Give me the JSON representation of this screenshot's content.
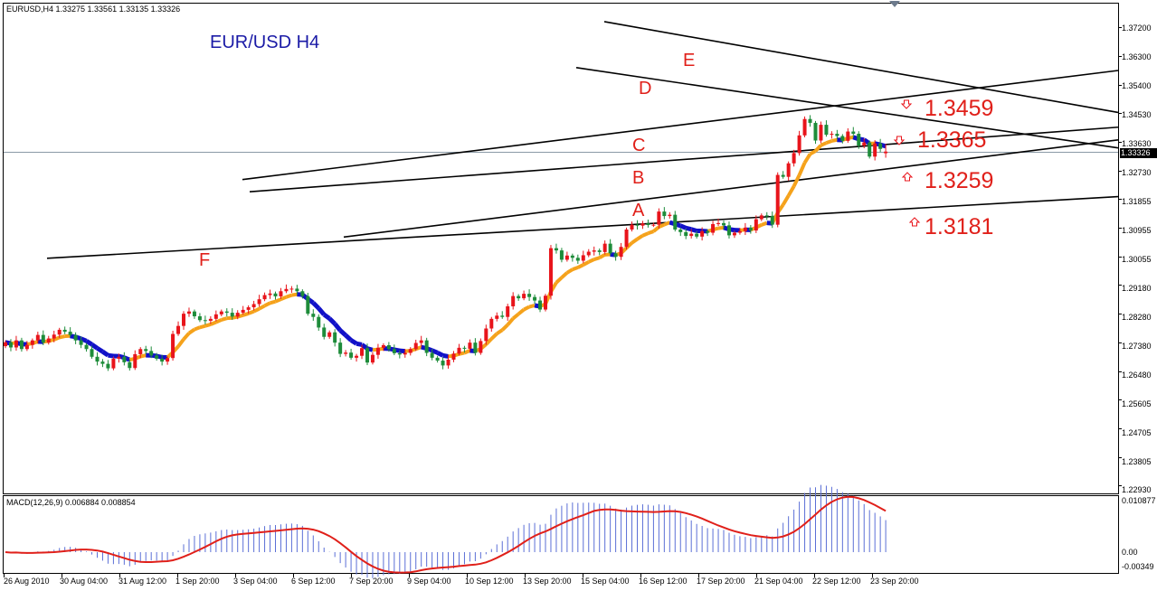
{
  "header": {
    "symbol_line": "EURUSD,H4  1.33275 1.33561 1.33135 1.33326",
    "title": "EUR/USD  H4",
    "current_price": "1.33326"
  },
  "annotations": {
    "wave_letters": [
      "A",
      "B",
      "C",
      "D",
      "E",
      "F"
    ],
    "levels": [
      "1.3459",
      "1.3365",
      "1.3259",
      "1.3181"
    ]
  },
  "macd": {
    "label": "MACD(12,26,9) 0.006884 0.008854",
    "axis": [
      "0.010877",
      "0.00",
      "-0.00349"
    ]
  },
  "colors": {
    "bull": "#e8141b",
    "bear": "#1e8c3a",
    "signal_up": "#f5a21b",
    "signal_down": "#1111c8",
    "macd_hist": "#5b6fd6",
    "macd_signal": "#e0201a"
  },
  "chart_data": [
    {
      "type": "candlestick",
      "title": "EUR/USD  H4",
      "symbol": "EURUSD,H4",
      "last_bar": {
        "open": 1.33275,
        "high": 1.33561,
        "low": 1.33135,
        "close": 1.33326
      },
      "x_tick_labels": [
        "26 Aug 2010",
        "30 Aug 04:00",
        "31 Aug 12:00",
        "1 Sep 20:00",
        "3 Sep 04:00",
        "6 Sep 12:00",
        "7 Sep 20:00",
        "9 Sep 04:00",
        "10 Sep 12:00",
        "13 Sep 20:00",
        "15 Sep 04:00",
        "16 Sep 12:00",
        "17 Sep 20:00",
        "21 Sep 04:00",
        "22 Sep 12:00",
        "23 Sep 20:00"
      ],
      "y_tick_labels": [
        "1.37200",
        "1.36300",
        "1.35400",
        "1.34530",
        "1.33630",
        "1.32730",
        "1.31855",
        "1.30955",
        "1.30055",
        "1.29180",
        "1.28280",
        "1.27380",
        "1.26480",
        "1.25605",
        "1.24705",
        "1.23805",
        "1.22930"
      ],
      "ylim": [
        1.2262,
        1.3755
      ],
      "horizontal_line": 1.33326,
      "closes": [
        1.2739,
        1.2723,
        1.2745,
        1.2718,
        1.2731,
        1.2745,
        1.2762,
        1.2738,
        1.2751,
        1.2763,
        1.2778,
        1.2772,
        1.2762,
        1.2745,
        1.2731,
        1.2718,
        1.2694,
        1.2679,
        1.2672,
        1.2658,
        1.2688,
        1.2694,
        1.2677,
        1.2659,
        1.2702,
        1.2718,
        1.2712,
        1.2698,
        1.2688,
        1.2679,
        1.269,
        1.2765,
        1.279,
        1.2828,
        1.2835,
        1.282,
        1.2808,
        1.2806,
        1.2812,
        1.2826,
        1.2835,
        1.2831,
        1.2819,
        1.2831,
        1.284,
        1.2848,
        1.2858,
        1.2873,
        1.2886,
        1.2891,
        1.2882,
        1.2898,
        1.2905,
        1.2906,
        1.2898,
        1.2883,
        1.2828,
        1.2818,
        1.2785,
        1.2756,
        1.277,
        1.2738,
        1.2703,
        1.2707,
        1.2691,
        1.2697,
        1.2721,
        1.2676,
        1.27,
        1.2722,
        1.273,
        1.2718,
        1.2705,
        1.2701,
        1.2706,
        1.2718,
        1.2737,
        1.2745,
        1.2706,
        1.2691,
        1.2682,
        1.2667,
        1.2685,
        1.2704,
        1.2722,
        1.2719,
        1.2738,
        1.2706,
        1.2743,
        1.2782,
        1.2812,
        1.2822,
        1.2818,
        1.2851,
        1.2883,
        1.2876,
        1.289,
        1.288,
        1.2869,
        1.2841,
        1.2884,
        1.3032,
        1.3025,
        1.2996,
        1.3009,
        1.3002,
        1.2993,
        1.301,
        1.3021,
        1.3025,
        1.302,
        1.3046,
        1.3016,
        1.3005,
        1.3036,
        1.309,
        1.3105,
        1.3102,
        1.3109,
        1.3104,
        1.3105,
        1.3146,
        1.3132,
        1.3136,
        1.309,
        1.3082,
        1.307,
        1.3077,
        1.3068,
        1.3085,
        1.308,
        1.3107,
        1.311,
        1.3103,
        1.3072,
        1.308,
        1.3085,
        1.3096,
        1.3087,
        1.3122,
        1.3134,
        1.3132,
        1.3105,
        1.326,
        1.3254,
        1.3296,
        1.3328,
        1.3383,
        1.3434,
        1.3422,
        1.3367,
        1.3416,
        1.3385,
        1.3388,
        1.3381,
        1.3366,
        1.3395,
        1.3388,
        1.3351,
        1.3361,
        1.3317,
        1.3358,
        1.3341,
        1.3333
      ],
      "signal_line_direction": [
        "down",
        "up",
        "down",
        "up",
        "down",
        "up"
      ]
    },
    {
      "type": "histogram",
      "title": "MACD(12,26,9) 0.006884 0.008854",
      "macd": 0.006884,
      "signal": 0.008854,
      "y_tick_labels": [
        "0.010877",
        "0.00",
        "-0.00349"
      ],
      "ylim": [
        -0.00349,
        0.010877
      ]
    }
  ]
}
